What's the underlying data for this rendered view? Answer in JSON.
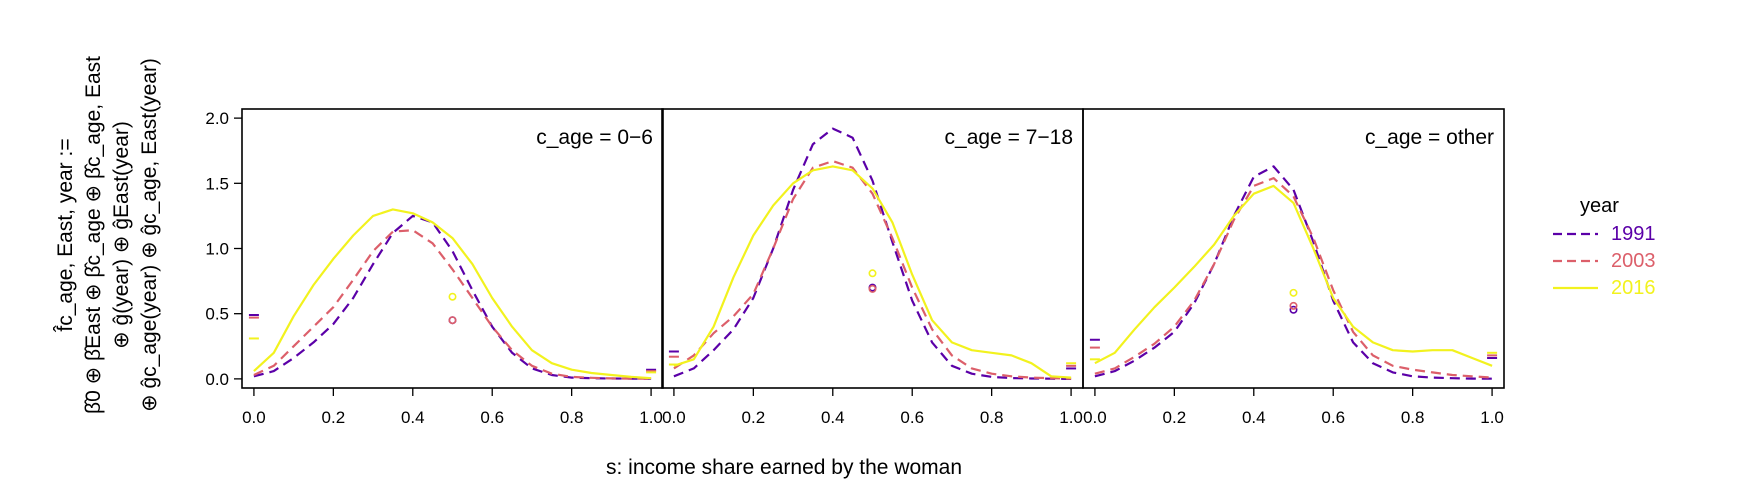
{
  "figure": {
    "xlabel": "s: income share earned by the woman",
    "ylabel_lines": [
      "f̂c_age, East, year :=",
      "β̂0 ⊕ β̂East ⊕ β̂c_age ⊕ β̂c_age, East",
      "⊕ ĝ(year) ⊕ ĝEast(year)",
      "⊕ ĝc_age(year) ⊕ ĝc_age, East(year)"
    ],
    "legend": {
      "title": "year",
      "items": [
        {
          "label": "1991",
          "color": "#5B00A8",
          "dash": "dashed"
        },
        {
          "label": "2003",
          "color": "#DC5F6A",
          "dash": "dashed"
        },
        {
          "label": "2016",
          "color": "#F2F21E",
          "dash": "solid"
        }
      ]
    }
  },
  "chart_data": {
    "type": "line",
    "x_ticks": [
      "0.0",
      "0.2",
      "0.4",
      "0.6",
      "0.8",
      "1.0"
    ],
    "y_ticks": [
      "0.0",
      "0.5",
      "1.0",
      "1.5",
      "2.0"
    ],
    "xlim": [
      -0.03,
      1.03
    ],
    "ylim": [
      -0.07,
      2.07
    ],
    "panels": [
      {
        "title": "c_age = 0−6",
        "series": [
          {
            "name": "1991",
            "x": [
              0,
              0.05,
              0.1,
              0.15,
              0.2,
              0.25,
              0.3,
              0.35,
              0.4,
              0.45,
              0.5,
              0.55,
              0.6,
              0.65,
              0.7,
              0.75,
              0.8,
              0.85,
              0.9,
              0.95,
              1.0
            ],
            "y": [
              0.02,
              0.06,
              0.16,
              0.28,
              0.42,
              0.62,
              0.88,
              1.12,
              1.25,
              1.2,
              0.98,
              0.68,
              0.4,
              0.2,
              0.08,
              0.03,
              0.01,
              0.005,
              0.003,
              0.002,
              0.001
            ],
            "dot": 0.45,
            "edge": [
              0.49,
              0.07
            ]
          },
          {
            "name": "2003",
            "x": [
              0,
              0.05,
              0.1,
              0.15,
              0.2,
              0.25,
              0.3,
              0.35,
              0.4,
              0.45,
              0.5,
              0.55,
              0.6,
              0.65,
              0.7,
              0.75,
              0.8,
              0.85,
              0.9,
              0.95,
              1.0
            ],
            "y": [
              0.03,
              0.1,
              0.25,
              0.4,
              0.55,
              0.76,
              0.98,
              1.13,
              1.14,
              1.04,
              0.84,
              0.62,
              0.4,
              0.22,
              0.1,
              0.04,
              0.015,
              0.008,
              0.004,
              0.002,
              0.001
            ],
            "dot": 0.45,
            "edge": [
              0.47,
              0.06
            ]
          },
          {
            "name": "2016",
            "x": [
              0,
              0.05,
              0.1,
              0.15,
              0.2,
              0.25,
              0.3,
              0.35,
              0.4,
              0.45,
              0.5,
              0.55,
              0.6,
              0.65,
              0.7,
              0.75,
              0.8,
              0.85,
              0.9,
              0.95,
              1.0
            ],
            "y": [
              0.06,
              0.2,
              0.48,
              0.72,
              0.92,
              1.1,
              1.25,
              1.3,
              1.27,
              1.2,
              1.08,
              0.88,
              0.62,
              0.4,
              0.22,
              0.12,
              0.07,
              0.045,
              0.03,
              0.015,
              0.005
            ],
            "dot": 0.63,
            "edge": [
              0.31,
              0.05
            ]
          }
        ]
      },
      {
        "title": "c_age = 7−18",
        "series": [
          {
            "name": "1991",
            "x": [
              0,
              0.05,
              0.1,
              0.15,
              0.2,
              0.25,
              0.3,
              0.35,
              0.4,
              0.45,
              0.5,
              0.55,
              0.6,
              0.65,
              0.7,
              0.75,
              0.8,
              0.85,
              0.9,
              0.95,
              1.0
            ],
            "y": [
              0.02,
              0.08,
              0.22,
              0.38,
              0.62,
              1.0,
              1.45,
              1.8,
              1.92,
              1.85,
              1.52,
              1.05,
              0.6,
              0.28,
              0.1,
              0.04,
              0.015,
              0.006,
              0.003,
              0.001,
              0.0
            ],
            "dot": 0.7,
            "edge": [
              0.21,
              0.08
            ]
          },
          {
            "name": "2003",
            "x": [
              0,
              0.05,
              0.1,
              0.15,
              0.2,
              0.25,
              0.3,
              0.35,
              0.4,
              0.45,
              0.5,
              0.55,
              0.6,
              0.65,
              0.7,
              0.75,
              0.8,
              0.85,
              0.9,
              0.95,
              1.0
            ],
            "y": [
              0.08,
              0.18,
              0.35,
              0.48,
              0.65,
              1.0,
              1.38,
              1.62,
              1.67,
              1.62,
              1.42,
              1.08,
              0.7,
              0.38,
              0.18,
              0.08,
              0.04,
              0.02,
              0.01,
              0.005,
              0.002
            ],
            "dot": 0.69,
            "edge": [
              0.17,
              0.1
            ]
          },
          {
            "name": "2016",
            "x": [
              0,
              0.05,
              0.1,
              0.15,
              0.2,
              0.25,
              0.3,
              0.35,
              0.4,
              0.45,
              0.5,
              0.55,
              0.6,
              0.65,
              0.7,
              0.75,
              0.8,
              0.85,
              0.9,
              0.95,
              1.0
            ],
            "y": [
              0.1,
              0.15,
              0.4,
              0.78,
              1.1,
              1.33,
              1.5,
              1.6,
              1.63,
              1.6,
              1.46,
              1.2,
              0.8,
              0.45,
              0.28,
              0.22,
              0.2,
              0.18,
              0.12,
              0.02,
              0.01
            ],
            "dot": 0.81,
            "edge": [
              0.11,
              0.12
            ]
          }
        ]
      },
      {
        "title": "c_age = other",
        "series": [
          {
            "name": "1991",
            "x": [
              0,
              0.05,
              0.1,
              0.15,
              0.2,
              0.25,
              0.3,
              0.35,
              0.4,
              0.45,
              0.5,
              0.55,
              0.6,
              0.65,
              0.7,
              0.75,
              0.8,
              0.85,
              0.9,
              0.95,
              1.0
            ],
            "y": [
              0.02,
              0.06,
              0.14,
              0.24,
              0.36,
              0.58,
              0.88,
              1.25,
              1.55,
              1.63,
              1.45,
              1.05,
              0.6,
              0.28,
              0.12,
              0.05,
              0.02,
              0.01,
              0.005,
              0.002,
              0.001
            ],
            "dot": 0.53,
            "edge": [
              0.3,
              0.16
            ]
          },
          {
            "name": "2003",
            "x": [
              0,
              0.05,
              0.1,
              0.15,
              0.2,
              0.25,
              0.3,
              0.35,
              0.4,
              0.45,
              0.5,
              0.55,
              0.6,
              0.65,
              0.7,
              0.75,
              0.8,
              0.85,
              0.9,
              0.95,
              1.0
            ],
            "y": [
              0.04,
              0.08,
              0.17,
              0.27,
              0.4,
              0.6,
              0.88,
              1.22,
              1.48,
              1.54,
              1.4,
              1.08,
              0.68,
              0.36,
              0.18,
              0.1,
              0.07,
              0.05,
              0.03,
              0.02,
              0.01
            ],
            "dot": 0.56,
            "edge": [
              0.24,
              0.18
            ]
          },
          {
            "name": "2016",
            "x": [
              0,
              0.05,
              0.1,
              0.15,
              0.2,
              0.25,
              0.3,
              0.35,
              0.4,
              0.45,
              0.5,
              0.55,
              0.6,
              0.65,
              0.7,
              0.75,
              0.8,
              0.85,
              0.9,
              0.95,
              1.0
            ],
            "y": [
              0.12,
              0.2,
              0.38,
              0.55,
              0.7,
              0.86,
              1.03,
              1.25,
              1.42,
              1.48,
              1.35,
              1.0,
              0.62,
              0.4,
              0.28,
              0.22,
              0.21,
              0.22,
              0.22,
              0.16,
              0.1
            ],
            "dot": 0.66,
            "edge": [
              0.15,
              0.2
            ]
          }
        ]
      }
    ],
    "grid": false,
    "legend_position": "right"
  }
}
